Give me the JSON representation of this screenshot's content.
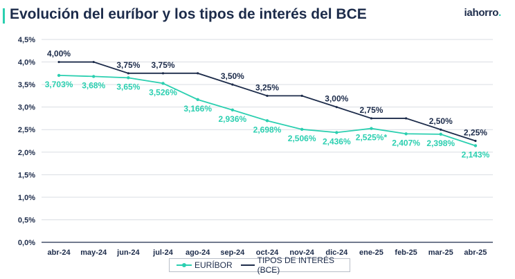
{
  "header": {
    "title": "Evolución del euríbor y los tipos de interés del BCE",
    "brand": "iahorro",
    "brand_dot": "."
  },
  "colors": {
    "euribor": "#2bcfb0",
    "bce": "#1c2b4a",
    "axis": "#1c2b4a",
    "grid": "#d9dde3"
  },
  "chart_data": {
    "type": "line",
    "title": "Evolución del euríbor y los tipos de interés del BCE",
    "categories": [
      "abr-24",
      "may-24",
      "jun-24",
      "jul-24",
      "ago-24",
      "sep-24",
      "oct-24",
      "nov-24",
      "dic-24",
      "ene-25",
      "feb-25",
      "mar-25",
      "abr-25"
    ],
    "ylim": [
      0,
      4.5
    ],
    "y_ticks": [
      "0,0%",
      "0,5%",
      "1,0%",
      "1,5%",
      "2,0%",
      "2,5%",
      "3,0%",
      "3,5%",
      "4,0%",
      "4,5%"
    ],
    "grid": true,
    "legend_position": "bottom",
    "series": [
      {
        "name": "EURÍBOR",
        "values": [
          3.703,
          3.68,
          3.65,
          3.526,
          3.166,
          2.936,
          2.698,
          2.506,
          2.436,
          2.525,
          2.407,
          2.398,
          2.143
        ],
        "labels": [
          "3,703%",
          "3,68%",
          "3,65%",
          "3,526%",
          "3,166%",
          "2,936%",
          "2,698%",
          "2,506%",
          "2,436%",
          "2,525%*",
          "2,407%",
          "2,398%",
          "2,143%"
        ]
      },
      {
        "name": "TIPOS DE INTERÉS (BCE)",
        "values": [
          4.0,
          4.0,
          3.75,
          3.75,
          3.75,
          3.5,
          3.25,
          3.25,
          3.0,
          2.75,
          2.75,
          2.5,
          2.25
        ],
        "labels": [
          "4,00%",
          "",
          "3,75%",
          "3,75%",
          "",
          "3,50%",
          "3,25%",
          "",
          "3,00%",
          "2,75%",
          "",
          "2,50%",
          "2,25%"
        ]
      }
    ]
  },
  "legend": {
    "euribor": "EURÍBOR",
    "bce": "TIPOS DE INTERÉS (BCE)"
  }
}
